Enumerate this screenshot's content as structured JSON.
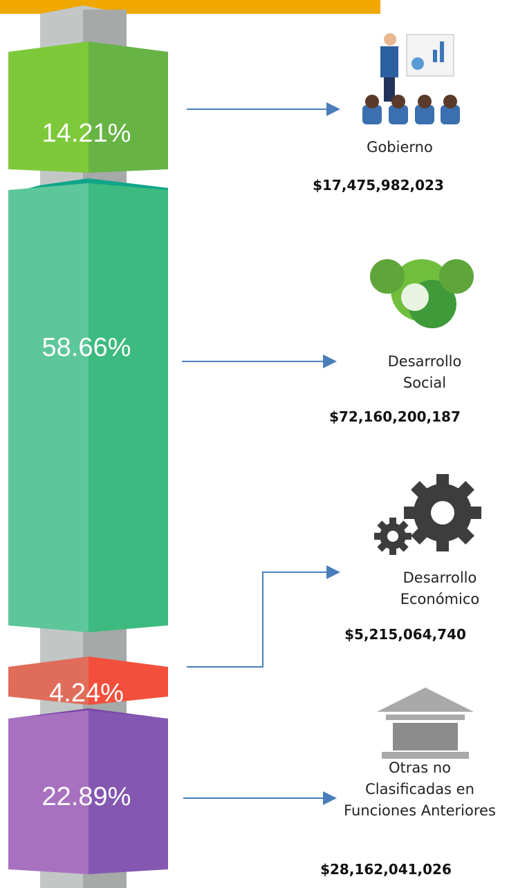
{
  "items": [
    {
      "percent": "14.21%",
      "label_lines": [
        "Gobierno"
      ],
      "amount": "$17,475,982,023"
    },
    {
      "percent": "58.66%",
      "label_lines": [
        "Desarrollo",
        "Social"
      ],
      "amount": "$72,160,200,187"
    },
    {
      "percent": "4.24%",
      "label_lines": [
        "Desarrollo",
        "Económico"
      ],
      "amount": "$5,215,064,740"
    },
    {
      "percent": "22.89%",
      "label_lines": [
        "Otras no",
        "Clasificadas en",
        "Funciones Anteriores"
      ],
      "amount": "$28,162,041,026"
    }
  ]
}
